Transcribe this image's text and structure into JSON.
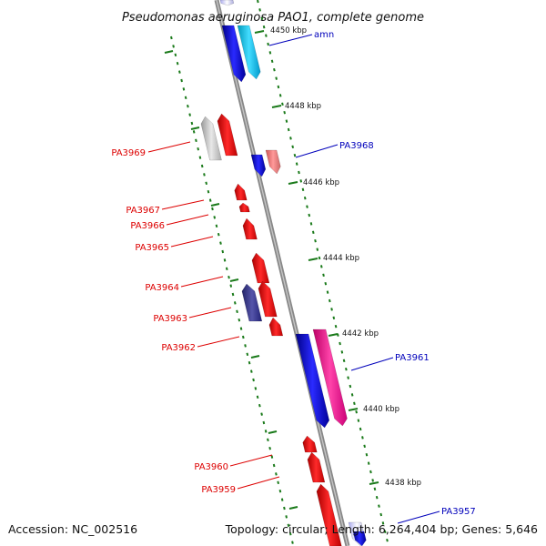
{
  "title": "Pseudomonas aeruginosa PAO1, complete genome",
  "footer": {
    "accession": "Accession: NC_002516",
    "stats": "Topology: circular; Length: 6,264,404 bp; Genes: 5,646"
  },
  "colors": {
    "forward_label": "#0000bb",
    "reverse_label": "#dd0000",
    "tick": "#1a7a1a",
    "backbone": "#888888"
  },
  "kbp_markers": [
    {
      "id": "4450",
      "label": "4450 kbp"
    },
    {
      "id": "4448",
      "label": "4448 kbp"
    },
    {
      "id": "4446",
      "label": "4446 kbp"
    },
    {
      "id": "4444",
      "label": "4444 kbp"
    },
    {
      "id": "4442",
      "label": "4442 kbp"
    },
    {
      "id": "4440",
      "label": "4440 kbp"
    },
    {
      "id": "4438",
      "label": "4438 kbp"
    }
  ],
  "forward_labels": [
    {
      "id": "amn",
      "label": "amn"
    },
    {
      "id": "PA3968",
      "label": "PA3968"
    },
    {
      "id": "PA3961",
      "label": "PA3961"
    },
    {
      "id": "PA3957",
      "label": "PA3957"
    }
  ],
  "reverse_labels": [
    {
      "id": "PA3969",
      "label": "PA3969"
    },
    {
      "id": "PA3967",
      "label": "PA3967"
    },
    {
      "id": "PA3966",
      "label": "PA3966"
    },
    {
      "id": "PA3965",
      "label": "PA3965"
    },
    {
      "id": "PA3964",
      "label": "PA3964"
    },
    {
      "id": "PA3963",
      "label": "PA3963"
    },
    {
      "id": "PA3962",
      "label": "PA3962"
    },
    {
      "id": "PA3960",
      "label": "PA3960"
    },
    {
      "id": "PA3959",
      "label": "PA3959"
    }
  ]
}
